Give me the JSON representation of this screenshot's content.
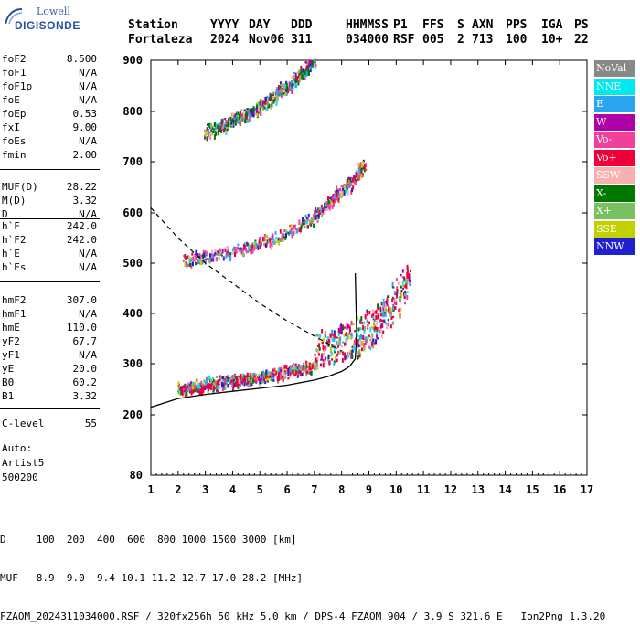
{
  "logo": {
    "line1": "Lowell",
    "line2": "DIGISONDE"
  },
  "header": {
    "row1": [
      "Station",
      "YYYY",
      "DAY",
      "DDD",
      "HHMMSS",
      "P1",
      "FFS",
      "S",
      "AXN",
      "PPS",
      "IGA",
      "PS"
    ],
    "row2": [
      "Fortaleza",
      "2024",
      "Nov06",
      "311",
      "034000",
      "RSF",
      "005",
      "2",
      "713",
      "100",
      "10+",
      "22"
    ]
  },
  "params": [
    {
      "k": "foF2",
      "v": "8.500"
    },
    {
      "k": "foF1",
      "v": "N/A"
    },
    {
      "k": "foF1p",
      "v": "N/A"
    },
    {
      "k": "foE",
      "v": "N/A"
    },
    {
      "k": "foEp",
      "v": "0.53"
    },
    {
      "k": "fxI",
      "v": "9.00"
    },
    {
      "k": "foEs",
      "v": "N/A"
    },
    {
      "k": "fmin",
      "v": "2.00"
    },
    {
      "k": "MUF(D)",
      "v": "28.22"
    },
    {
      "k": "M(D)",
      "v": "3.32"
    },
    {
      "k": "D",
      "v": "N/A"
    },
    {
      "k": "h`F",
      "v": "242.0"
    },
    {
      "k": "h`F2",
      "v": "242.0"
    },
    {
      "k": "h`E",
      "v": "N/A"
    },
    {
      "k": "h`Es",
      "v": "N/A"
    },
    {
      "k": "hmF2",
      "v": "307.0"
    },
    {
      "k": "hmF1",
      "v": "N/A"
    },
    {
      "k": "hmE",
      "v": "110.0"
    },
    {
      "k": "yF2",
      "v": "67.7"
    },
    {
      "k": "yF1",
      "v": "N/A"
    },
    {
      "k": "yE",
      "v": "20.0"
    },
    {
      "k": "B0",
      "v": "60.2"
    },
    {
      "k": "B1",
      "v": "3.32"
    },
    {
      "k": "C-level",
      "v": "55"
    }
  ],
  "footer_left": {
    "auto": "Auto:",
    "artist": "Artist5",
    "code": "500200"
  },
  "legend": [
    {
      "label": "NoVal",
      "color": "#888888"
    },
    {
      "label": "NNE",
      "color": "#00e8f0"
    },
    {
      "label": "E",
      "color": "#2aa6f0"
    },
    {
      "label": "W",
      "color": "#b000a8"
    },
    {
      "label": "Vo-",
      "color": "#f0409a"
    },
    {
      "label": "Vo+",
      "color": "#f00038"
    },
    {
      "label": "SSW",
      "color": "#f8b0b0"
    },
    {
      "label": "X-",
      "color": "#007800"
    },
    {
      "label": "X+",
      "color": "#78c060"
    },
    {
      "label": "SSE",
      "color": "#c0d000"
    },
    {
      "label": "NNW",
      "color": "#2020d0"
    }
  ],
  "bottom": {
    "d_row": "D     100  200  400  600  800 1000 1500 3000 [km]",
    "muf_row": "MUF   8.9  9.0  9.4 10.1 11.2 12.7 17.0 28.2 [MHz]",
    "file_row": "FZAOM_2024311034000.RSF / 320fx256h 50 kHz 5.0 km / DPS-4 FZAOM 904 / 3.9 S 321.6 E   Ion2Png 1.3.20"
  },
  "chart_data": {
    "type": "scatter",
    "title": "",
    "xlabel": "",
    "ylabel": "",
    "xlim": [
      1,
      17
    ],
    "ylim": [
      80,
      900
    ],
    "x_ticks": [
      1,
      2,
      3,
      4,
      5,
      6,
      7,
      8,
      9,
      10,
      11,
      12,
      13,
      14,
      15,
      16,
      17
    ],
    "y_ticks": [
      80,
      200,
      300,
      400,
      500,
      600,
      700,
      800,
      900
    ],
    "grid": false,
    "legend_position": "right",
    "echo_traces": [
      {
        "name": "",
        "color": "#f00038",
        "x": [
          2.0,
          2.5,
          3.0,
          3.5,
          4.0,
          4.5,
          5.0,
          5.5,
          6.0,
          6.5,
          7.0,
          7.5,
          8.0,
          8.5,
          9.0,
          9.5,
          10.0,
          10.5
        ],
        "y": [
          248,
          250,
          254,
          258,
          262,
          266,
          270,
          274,
          280,
          286,
          292,
          300,
          310,
          320,
          336,
          360,
          395,
          440
        ]
      },
      {
        "name": "",
        "color": "#f0409a",
        "x": [
          2.2,
          3.0,
          4.0,
          5.0,
          6.0,
          7.0,
          7.5,
          8.0,
          8.5,
          8.8
        ],
        "y": [
          500,
          508,
          520,
          535,
          555,
          590,
          615,
          640,
          665,
          690
        ]
      },
      {
        "name": "",
        "color": "#007800",
        "x": [
          3.0,
          3.5,
          4.0,
          4.5,
          5.0,
          5.5,
          6.0,
          6.5,
          7.0
        ],
        "y": [
          755,
          765,
          778,
          790,
          805,
          825,
          845,
          870,
          895
        ]
      }
    ],
    "profile_curve": {
      "x": [
        1.0,
        2.0,
        3.0,
        4.0,
        5.0,
        6.0,
        7.0,
        7.5,
        8.0,
        8.3,
        8.5,
        8.55,
        8.5
      ],
      "y": [
        215,
        232,
        240,
        246,
        252,
        258,
        268,
        275,
        285,
        295,
        310,
        360,
        480
      ]
    },
    "dashed_curve": {
      "x": [
        1.0,
        2.0,
        3.0,
        4.0,
        5.0,
        6.0,
        7.0,
        8.0
      ],
      "y": [
        610,
        550,
        500,
        460,
        420,
        385,
        355,
        325
      ]
    }
  }
}
